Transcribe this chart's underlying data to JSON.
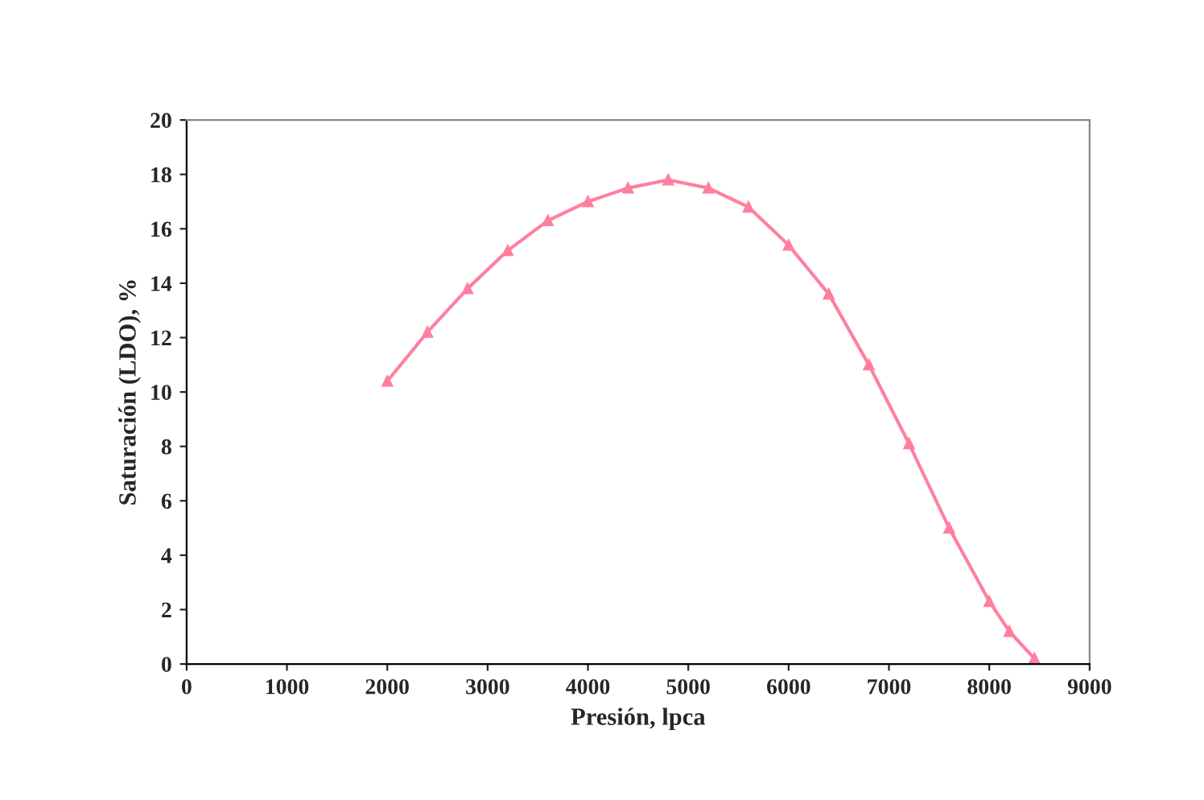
{
  "chart_data": {
    "type": "line",
    "xlabel": "Presión, lpca",
    "ylabel": "Saturación (LDO), %",
    "series": [
      {
        "color": "#ff7f9f",
        "x": [
          2000,
          2400,
          2800,
          3200,
          3600,
          4000,
          4400,
          4800,
          5200,
          5600,
          6000,
          6400,
          6800,
          7200,
          7600,
          8000,
          8200,
          8450
        ],
        "values": [
          10.4,
          12.2,
          13.8,
          15.2,
          16.3,
          17.0,
          17.5,
          17.8,
          17.5,
          16.8,
          15.4,
          13.6,
          11.0,
          8.1,
          5.0,
          2.3,
          1.2,
          0.2
        ]
      }
    ],
    "xlim": [
      0,
      9000
    ],
    "xticks": [
      0,
      1000,
      2000,
      3000,
      4000,
      5000,
      6000,
      7000,
      8000,
      9000
    ],
    "ylim": [
      0,
      20
    ],
    "yticks": [
      0,
      2,
      4,
      6,
      8,
      10,
      12,
      14,
      16,
      18,
      20
    ],
    "grid": false,
    "legend": false,
    "marker": "triangle",
    "line_style": "solid"
  }
}
